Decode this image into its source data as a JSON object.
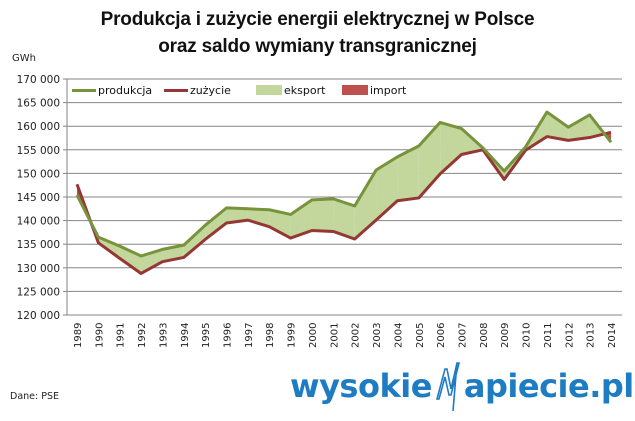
{
  "header": {
    "title_line1": "Produkcja  i zużycie energii elektrycznej w Polsce",
    "title_line2": "oraz saldo wymiany transgranicznej",
    "unit": "GWh"
  },
  "footer": {
    "source": "Dane: PSE",
    "logo_left": "wysokie",
    "logo_right": "apiecie.pl",
    "logo_icon": "lightning-n-icon"
  },
  "colors": {
    "produkcja": "#77933c",
    "zuzycie": "#953735",
    "eksport": "#c3d69b",
    "import": "#c0504d",
    "grid": "#868686",
    "logo": "#1d7cc2"
  },
  "legend": [
    {
      "label": "produkcja",
      "type": "line",
      "color": "#77933c"
    },
    {
      "label": "zużycie",
      "type": "line",
      "color": "#953735"
    },
    {
      "label": "eksport",
      "type": "area",
      "color": "#c3d69b"
    },
    {
      "label": "import",
      "type": "area",
      "color": "#c0504d"
    }
  ],
  "chart_data": {
    "type": "line",
    "title": "Produkcja  i zużycie energii elektrycznej w Polsce oraz saldo wymiany transgranicznej",
    "xlabel": "",
    "ylabel": "GWh",
    "ylim": [
      120000,
      170000
    ],
    "yticks": [
      120000,
      125000,
      130000,
      135000,
      140000,
      145000,
      150000,
      155000,
      160000,
      165000,
      170000
    ],
    "ytick_labels": [
      "120 000",
      "125 000",
      "130 000",
      "135 000",
      "140 000",
      "145 000",
      "150 000",
      "155 000",
      "160 000",
      "165 000",
      "170 000"
    ],
    "grid": true,
    "legend_position": "top-inside",
    "categories": [
      "1989",
      "1990",
      "1991",
      "1992",
      "1993",
      "1994",
      "1995",
      "1996",
      "1997",
      "1998",
      "1999",
      "2000",
      "2001",
      "2002",
      "2003",
      "2004",
      "2005",
      "2006",
      "2007",
      "2008",
      "2009",
      "2010",
      "2011",
      "2012",
      "2013",
      "2014"
    ],
    "series": [
      {
        "name": "produkcja",
        "values": [
          145400,
          136500,
          134600,
          132500,
          133900,
          134800,
          139000,
          142700,
          142500,
          142300,
          141300,
          144400,
          144600,
          143100,
          150700,
          153500,
          155800,
          160800,
          159500,
          155400,
          150500,
          155600,
          163000,
          159800,
          162400,
          156600
        ]
      },
      {
        "name": "zużycie",
        "values": [
          147700,
          135300,
          132000,
          128800,
          131300,
          132200,
          136000,
          139500,
          140100,
          138700,
          136300,
          137900,
          137700,
          136100,
          140100,
          144200,
          144800,
          149900,
          154000,
          155000,
          148700,
          154900,
          157800,
          157000,
          157600,
          158700
        ]
      }
    ],
    "areas": [
      {
        "name": "eksport",
        "description": "produkcja > zużycie"
      },
      {
        "name": "import",
        "description": "zużycie > produkcja"
      }
    ]
  }
}
